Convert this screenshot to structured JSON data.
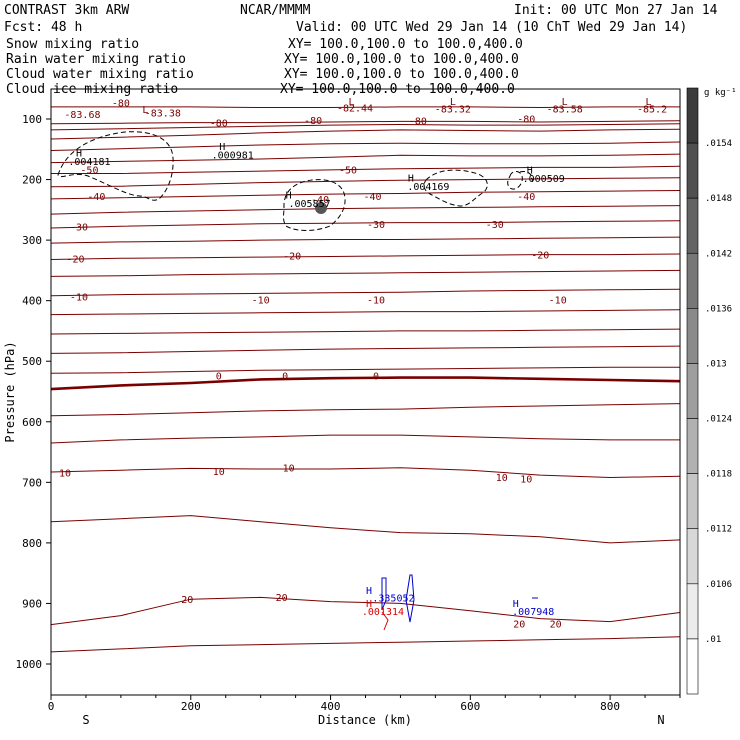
{
  "header": {
    "title": "CONTRAST  3km ARW",
    "source": "NCAR/MMMM",
    "init": "Init: 00 UTC Mon 27 Jan 14",
    "fcst": "Fcst:   48 h",
    "valid": "Valid: 00 UTC Wed 29 Jan 14 (10 ChT Wed 29 Jan 14)",
    "xy": "XY= 100.0,100.0 to 100.0,400.0"
  },
  "fields": [
    {
      "name": "Snow mixing ratio",
      "color": "#000000"
    },
    {
      "name": "Rain water mixing ratio",
      "color": "#dd0000"
    },
    {
      "name": "Cloud water mixing ratio",
      "color": "#0000cc"
    },
    {
      "name": "Cloud ice mixing ratio",
      "color": "#000000"
    }
  ],
  "colors": {
    "temperature": "#7a0000",
    "snow": "#000000",
    "rain": "#dd0000",
    "cloud_water": "#0000cc"
  },
  "chart_data": {
    "type": "cross-section",
    "xlabel": "Distance (km)",
    "ylabel": "Pressure (hPa)",
    "xlim": [
      0,
      900
    ],
    "ylim": [
      1050,
      50
    ],
    "xticks": [
      0,
      200,
      400,
      600,
      800
    ],
    "yticks": [
      100,
      200,
      300,
      400,
      500,
      600,
      700,
      800,
      900,
      1000
    ],
    "x_end_labels": {
      "left": "S",
      "right": "N"
    },
    "temperature_contours": [
      {
        "level": -85,
        "p": [
          80,
          80,
          80,
          81,
          81,
          80,
          80,
          81,
          80,
          80
        ]
      },
      {
        "level": -80,
        "p": [
          108,
          107,
          106,
          106,
          105,
          104,
          104,
          105,
          104,
          103
        ]
      },
      {
        "level": -80,
        "p": [
          118,
          116,
          114,
          112,
          110,
          109,
          110,
          110,
          109,
          108
        ]
      },
      {
        "level": -80,
        "p": [
          133,
          130,
          127,
          123,
          120,
          118,
          119,
          120,
          118,
          117
        ]
      },
      {
        "level": -70,
        "p": [
          152,
          149,
          146,
          143,
          141,
          140,
          141,
          141,
          140,
          138
        ]
      },
      {
        "level": -60,
        "p": [
          172,
          170,
          168,
          166,
          163,
          160,
          161,
          161,
          160,
          158
        ]
      },
      {
        "level": -50,
        "p": [
          190,
          190,
          188,
          186,
          184,
          182,
          181,
          180,
          180,
          178
        ]
      },
      {
        "level": -45,
        "p": [
          212,
          211,
          208,
          205,
          203,
          201,
          200,
          199,
          198,
          197
        ]
      },
      {
        "level": -40,
        "p": [
          232,
          230,
          228,
          226,
          224,
          223,
          221,
          220,
          219,
          218
        ]
      },
      {
        "level": -35,
        "p": [
          257,
          254,
          252,
          250,
          248,
          247,
          246,
          245,
          244,
          243
        ]
      },
      {
        "level": -30,
        "p": [
          280,
          277,
          275,
          273,
          272,
          271,
          271,
          270,
          269,
          268
        ]
      },
      {
        "level": -25,
        "p": [
          305,
          303,
          302,
          300,
          299,
          299,
          298,
          297,
          296,
          295
        ]
      },
      {
        "level": -20,
        "p": [
          332,
          330,
          329,
          328,
          327,
          326,
          325,
          324,
          324,
          323
        ]
      },
      {
        "level": -15,
        "p": [
          360,
          359,
          357,
          356,
          355,
          354,
          353,
          352,
          351,
          350
        ]
      },
      {
        "level": -10,
        "p": [
          392,
          390,
          389,
          388,
          387,
          386,
          384,
          383,
          382,
          381
        ]
      },
      {
        "level": -5,
        "p": [
          423,
          422,
          421,
          420,
          419,
          418,
          418,
          417,
          416,
          415
        ]
      },
      {
        "level": -2,
        "p": [
          455,
          454,
          453,
          452,
          451,
          450,
          450,
          449,
          448,
          447
        ]
      },
      {
        "level": 0,
        "p": [
          487,
          486,
          484,
          482,
          480,
          479,
          478,
          477,
          476,
          475
        ]
      },
      {
        "level": 2,
        "p": [
          520,
          519,
          517,
          515,
          514,
          513,
          512,
          511,
          510,
          510
        ]
      },
      {
        "level": 0,
        "p": [
          546,
          540,
          536,
          530,
          528,
          527,
          527,
          529,
          531,
          533
        ],
        "bold": true
      },
      {
        "level": 5,
        "p": [
          590,
          588,
          585,
          582,
          580,
          579,
          576,
          574,
          572,
          570
        ]
      },
      {
        "level": 8,
        "p": [
          635,
          630,
          627,
          625,
          622,
          622,
          625,
          628,
          630,
          630
        ]
      },
      {
        "level": 10,
        "p": [
          683,
          680,
          677,
          678,
          678,
          676,
          680,
          688,
          692,
          690
        ]
      },
      {
        "level": 15,
        "p": [
          765,
          760,
          755,
          765,
          775,
          783,
          785,
          790,
          800,
          795
        ]
      },
      {
        "level": 20,
        "p": [
          935,
          920,
          893,
          890,
          897,
          900,
          912,
          925,
          930,
          915
        ]
      },
      {
        "level": 22,
        "p": [
          980,
          975,
          970,
          968,
          966,
          964,
          962,
          960,
          958,
          955
        ]
      }
    ],
    "contour_labels": [
      {
        "x": 45,
        "p": 98,
        "text": "-83.68"
      },
      {
        "x": 135,
        "p": 90,
        "text": "L"
      },
      {
        "x": 160,
        "p": 96,
        "text": "-83.38"
      },
      {
        "x": 100,
        "p": 79,
        "text": "-80"
      },
      {
        "x": 240,
        "p": 112,
        "text": "-80"
      },
      {
        "x": 375,
        "p": 108,
        "text": "-80"
      },
      {
        "x": 430,
        "p": 77,
        "text": "L"
      },
      {
        "x": 435,
        "p": 88,
        "text": "-82.44"
      },
      {
        "x": 525,
        "p": 109,
        "text": "-80"
      },
      {
        "x": 575,
        "p": 77,
        "text": "L"
      },
      {
        "x": 575,
        "p": 89,
        "text": "-83.32"
      },
      {
        "x": 680,
        "p": 106,
        "text": "-80"
      },
      {
        "x": 735,
        "p": 77,
        "text": "L"
      },
      {
        "x": 735,
        "p": 89,
        "text": "-83.58"
      },
      {
        "x": 855,
        "p": 77,
        "text": "L"
      },
      {
        "x": 860,
        "p": 89,
        "text": "-85.2"
      },
      {
        "x": 55,
        "p": 190,
        "text": "-50"
      },
      {
        "x": 425,
        "p": 190,
        "text": "-50"
      },
      {
        "x": 65,
        "p": 234,
        "text": "-40"
      },
      {
        "x": 385,
        "p": 239,
        "text": "-40"
      },
      {
        "x": 460,
        "p": 234,
        "text": "-40"
      },
      {
        "x": 680,
        "p": 234,
        "text": "-40"
      },
      {
        "x": 40,
        "p": 284,
        "text": "-30"
      },
      {
        "x": 465,
        "p": 280,
        "text": "-30"
      },
      {
        "x": 635,
        "p": 280,
        "text": "-30"
      },
      {
        "x": 35,
        "p": 337,
        "text": "-20"
      },
      {
        "x": 345,
        "p": 332,
        "text": "-20"
      },
      {
        "x": 700,
        "p": 330,
        "text": "-20"
      },
      {
        "x": 40,
        "p": 400,
        "text": "-10"
      },
      {
        "x": 300,
        "p": 405,
        "text": "-10"
      },
      {
        "x": 465,
        "p": 405,
        "text": "-10"
      },
      {
        "x": 725,
        "p": 405,
        "text": "-10"
      },
      {
        "x": 240,
        "p": 530,
        "text": "0"
      },
      {
        "x": 335,
        "p": 530,
        "text": "0"
      },
      {
        "x": 465,
        "p": 530,
        "text": "0"
      },
      {
        "x": 20,
        "p": 690,
        "text": "10"
      },
      {
        "x": 240,
        "p": 688,
        "text": "10"
      },
      {
        "x": 340,
        "p": 682,
        "text": "10"
      },
      {
        "x": 645,
        "p": 698,
        "text": "10"
      },
      {
        "x": 680,
        "p": 700,
        "text": "10"
      },
      {
        "x": 195,
        "p": 899,
        "text": "20"
      },
      {
        "x": 330,
        "p": 896,
        "text": "20"
      },
      {
        "x": 670,
        "p": 940,
        "text": "20"
      },
      {
        "x": 722,
        "p": 940,
        "text": "20"
      }
    ],
    "extrema_labels": [
      {
        "x": 40,
        "p": 162,
        "text": "H",
        "field": "snow"
      },
      {
        "x": 55,
        "p": 176,
        "text": ".004181",
        "field": "snow"
      },
      {
        "x": 245,
        "p": 151,
        "text": "H",
        "field": "snow"
      },
      {
        "x": 260,
        "p": 165,
        "text": ".000981",
        "field": "snow"
      },
      {
        "x": 340,
        "p": 231,
        "text": "H",
        "field": "snow"
      },
      {
        "x": 370,
        "p": 245,
        "text": ".005857",
        "field": "snow"
      },
      {
        "x": 515,
        "p": 203,
        "text": "H",
        "field": "snow"
      },
      {
        "x": 540,
        "p": 217,
        "text": ".004169",
        "field": "snow"
      },
      {
        "x": 685,
        "p": 190,
        "text": "H",
        "field": "snow"
      },
      {
        "x": 705,
        "p": 204,
        "text": ".000509",
        "field": "snow"
      },
      {
        "x": 455,
        "p": 884,
        "text": "H",
        "field": "cloud_water"
      },
      {
        "x": 490,
        "p": 897,
        "text": ".335052",
        "field": "cloud_water"
      },
      {
        "x": 455,
        "p": 906,
        "text": "H",
        "field": "rain"
      },
      {
        "x": 475,
        "p": 919,
        "text": ".001314",
        "field": "rain"
      },
      {
        "x": 665,
        "p": 906,
        "text": "H",
        "field": "cloud_water"
      },
      {
        "x": 690,
        "p": 919,
        "text": ".007948",
        "field": "cloud_water"
      }
    ],
    "colorbar": {
      "unit": "g kg⁻¹",
      "ticks": [
        ".0154",
        ".0148",
        ".0142",
        ".0136",
        ".013",
        ".0124",
        ".0118",
        ".0112",
        ".0106",
        ".01"
      ]
    }
  }
}
